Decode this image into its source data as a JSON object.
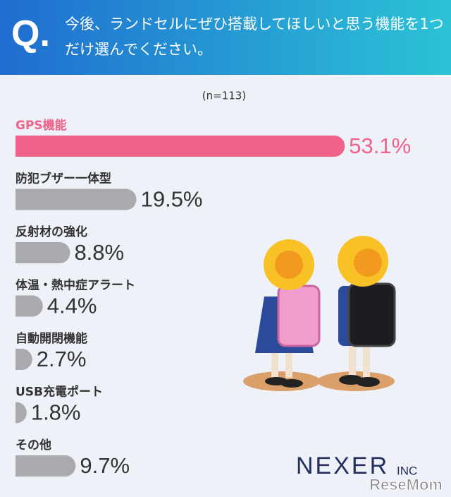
{
  "header": {
    "q": "Q.",
    "title": "今後、ランドセルにぜひ搭載してほしいと思う機能を1つだけ選んでください。"
  },
  "chart_data": {
    "type": "bar",
    "orientation": "horizontal",
    "subtitle": "(n=113)",
    "categories": [
      "GPS機能",
      "防犯ブザー一体型",
      "反射材の強化",
      "体温・熱中症アラート",
      "自動開閉機能",
      "USB充電ポート",
      "その他"
    ],
    "values": [
      53.1,
      19.5,
      8.8,
      4.4,
      2.7,
      1.8,
      9.7
    ],
    "value_labels": [
      "53.1%",
      "19.5%",
      "8.8%",
      "4.4%",
      "2.7%",
      "1.8%",
      "9.7%"
    ],
    "colors": [
      "#f0628a",
      "#a9a9ae",
      "#a9a9ae",
      "#a9a9ae",
      "#a9a9ae",
      "#a9a9ae",
      "#a9a9ae"
    ]
  },
  "footer": {
    "logo": "NEXER",
    "logo_suffix": "INC",
    "watermark": "ReseMom"
  }
}
